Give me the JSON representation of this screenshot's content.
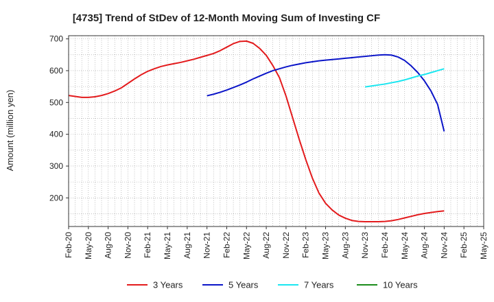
{
  "chart_data": {
    "type": "line",
    "title": "[4735]  Trend of StDev of 12-Month Moving Sum of Investing CF",
    "xlabel": "",
    "ylabel": "Amount (million yen)",
    "ylim": [
      110,
      710
    ],
    "yticks": [
      200,
      300,
      400,
      500,
      600,
      700
    ],
    "x_tick_labels": [
      "Feb-20",
      "May-20",
      "Aug-20",
      "Nov-20",
      "Feb-21",
      "May-21",
      "Aug-21",
      "Nov-21",
      "Feb-22",
      "May-22",
      "Aug-22",
      "Nov-22",
      "Feb-23",
      "May-23",
      "Aug-23",
      "Nov-23",
      "Feb-24",
      "May-24",
      "Aug-24",
      "Nov-24",
      "Feb-25",
      "May-25"
    ],
    "grid": true,
    "legend_position": "bottom",
    "series": [
      {
        "name": "3 Years",
        "color": "#e31a1c",
        "x": [
          "Feb-20",
          "Mar-20",
          "Apr-20",
          "May-20",
          "Jun-20",
          "Jul-20",
          "Aug-20",
          "Sep-20",
          "Oct-20",
          "Nov-20",
          "Dec-20",
          "Jan-21",
          "Feb-21",
          "Mar-21",
          "Apr-21",
          "May-21",
          "Jun-21",
          "Jul-21",
          "Aug-21",
          "Sep-21",
          "Oct-21",
          "Nov-21",
          "Dec-21",
          "Jan-22",
          "Feb-22",
          "Mar-22",
          "Apr-22",
          "May-22",
          "Jun-22",
          "Jul-22",
          "Aug-22",
          "Sep-22",
          "Oct-22",
          "Nov-22",
          "Dec-22",
          "Jan-23",
          "Feb-23",
          "Mar-23",
          "Apr-23",
          "May-23",
          "Jun-23",
          "Jul-23",
          "Aug-23",
          "Sep-23",
          "Oct-23",
          "Nov-23",
          "Dec-23",
          "Jan-24",
          "Feb-24",
          "Mar-24",
          "Apr-24",
          "May-24",
          "Jun-24",
          "Jul-24",
          "Aug-24",
          "Sep-24",
          "Oct-24",
          "Nov-24"
        ],
        "values": [
          522,
          519,
          516,
          516,
          518,
          522,
          528,
          536,
          546,
          560,
          574,
          587,
          598,
          606,
          613,
          618,
          622,
          626,
          631,
          636,
          642,
          648,
          654,
          663,
          674,
          685,
          692,
          693,
          686,
          670,
          648,
          616,
          578,
          520,
          452,
          384,
          320,
          262,
          215,
          183,
          162,
          146,
          136,
          129,
          126,
          125,
          125,
          125,
          126,
          128,
          132,
          137,
          142,
          147,
          151,
          154,
          157,
          159
        ],
        "start_month_index": 0
      },
      {
        "name": "5 Years",
        "color": "#0a14c8",
        "x": [
          "Nov-21",
          "Dec-21",
          "Jan-22",
          "Feb-22",
          "Mar-22",
          "Apr-22",
          "May-22",
          "Jun-22",
          "Jul-22",
          "Aug-22",
          "Sep-22",
          "Oct-22",
          "Nov-22",
          "Dec-22",
          "Jan-23",
          "Feb-23",
          "Mar-23",
          "Apr-23",
          "May-23",
          "Jun-23",
          "Jul-23",
          "Aug-23",
          "Sep-23",
          "Oct-23",
          "Nov-23",
          "Dec-23",
          "Jan-24",
          "Feb-24",
          "Mar-24",
          "Apr-24",
          "May-24",
          "Jun-24",
          "Jul-24",
          "Aug-24",
          "Sep-24",
          "Oct-24",
          "Nov-24"
        ],
        "values": [
          521,
          526,
          532,
          539,
          547,
          555,
          564,
          574,
          583,
          592,
          600,
          606,
          612,
          617,
          621,
          625,
          628,
          631,
          633,
          635,
          637,
          639,
          641,
          643,
          645,
          647,
          649,
          650,
          649,
          643,
          632,
          615,
          594,
          568,
          536,
          494,
          409
        ],
        "start_month_index": 21
      },
      {
        "name": "7 Years",
        "color": "#19e6f0",
        "x": [
          "Nov-23",
          "Dec-23",
          "Jan-24",
          "Feb-24",
          "Mar-24",
          "Apr-24",
          "May-24",
          "Jun-24",
          "Jul-24",
          "Aug-24",
          "Sep-24",
          "Oct-24",
          "Nov-24"
        ],
        "values": [
          549,
          552,
          555,
          558,
          562,
          566,
          571,
          577,
          583,
          588,
          594,
          600,
          606
        ],
        "start_month_index": 45
      },
      {
        "name": "10 Years",
        "color": "#1a8c1a",
        "x": [],
        "values": [],
        "start_month_index": 0
      }
    ]
  }
}
